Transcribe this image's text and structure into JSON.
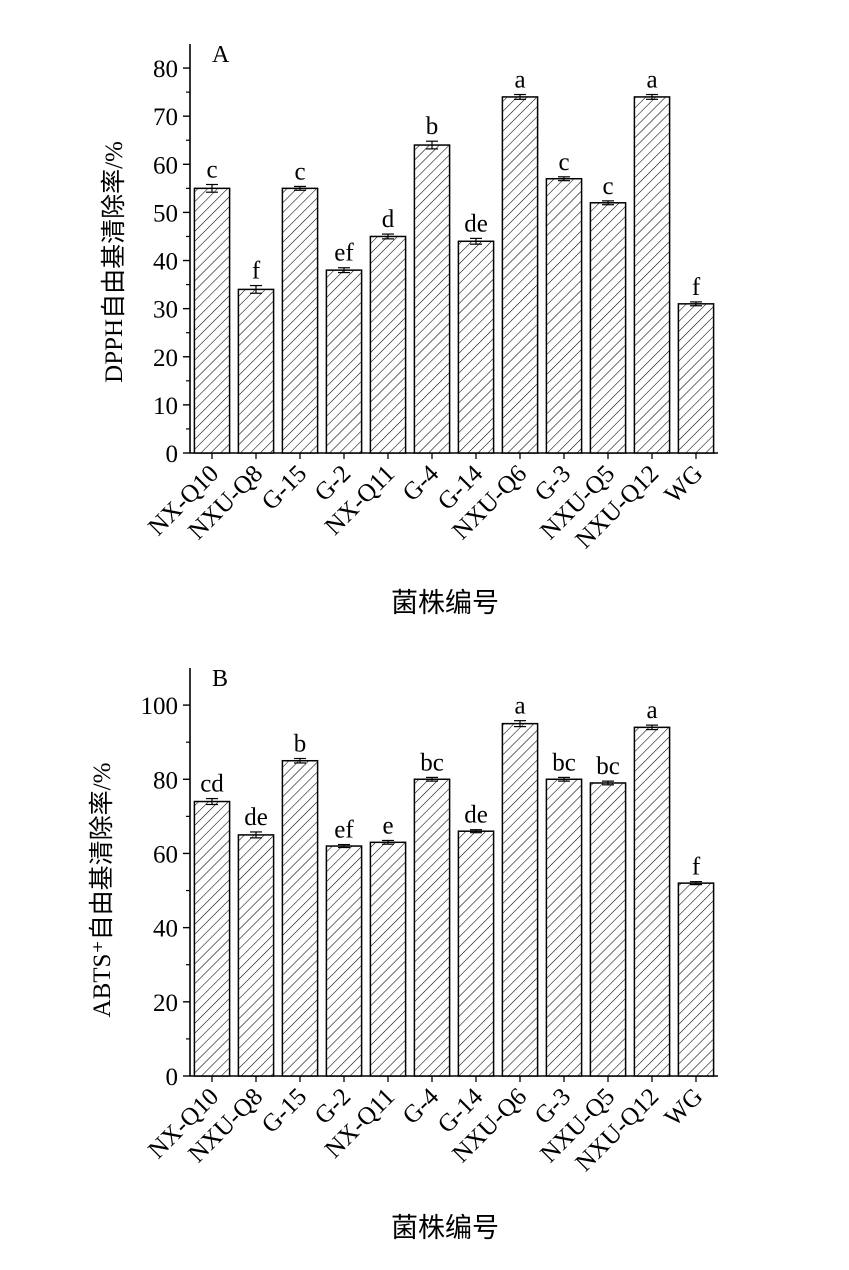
{
  "chart_data": [
    {
      "type": "bar",
      "panel_label": "A",
      "ylabel": "DPPH自由基清除率/%",
      "xlabel": "菌株编号",
      "categories": [
        "NX-Q10",
        "NXU-Q8",
        "G-15",
        "G-2",
        "NX-Q11",
        "G-4",
        "G-14",
        "NXU-Q6",
        "G-3",
        "NXU-Q5",
        "NXU-Q12",
        "WG"
      ],
      "values": [
        55,
        34,
        55,
        38,
        45,
        64,
        44,
        74,
        57,
        52,
        74,
        31
      ],
      "errors": [
        0.8,
        0.8,
        0.4,
        0.5,
        0.5,
        0.8,
        0.6,
        0.5,
        0.4,
        0.4,
        0.5,
        0.4
      ],
      "labels": [
        "c",
        "f",
        "c",
        "ef",
        "d",
        "b",
        "de",
        "a",
        "c",
        "c",
        "a",
        "f"
      ],
      "ylim": [
        0,
        85
      ],
      "yticks": [
        0,
        10,
        20,
        30,
        40,
        50,
        60,
        70,
        80
      ],
      "hatch": "diagonal",
      "bar_color": "#ffffff",
      "line_color": "#000000"
    },
    {
      "type": "bar",
      "panel_label": "B",
      "ylabel": "ABTS⁺自由基清除率/%",
      "xlabel": "菌株编号",
      "categories": [
        "NX-Q10",
        "NXU-Q8",
        "G-15",
        "G-2",
        "NX-Q11",
        "G-4",
        "G-14",
        "NXU-Q6",
        "G-3",
        "NXU-Q5",
        "NXU-Q12",
        "WG"
      ],
      "values": [
        74,
        65,
        85,
        62,
        63,
        80,
        66,
        95,
        80,
        79,
        94,
        52
      ],
      "errors": [
        0.8,
        0.8,
        0.6,
        0.4,
        0.5,
        0.5,
        0.4,
        0.8,
        0.5,
        0.5,
        0.6,
        0.4
      ],
      "labels": [
        "cd",
        "de",
        "b",
        "ef",
        "e",
        "bc",
        "de",
        "a",
        "bc",
        "bc",
        "a",
        "f"
      ],
      "ylim": [
        0,
        110
      ],
      "yticks": [
        0,
        20,
        40,
        60,
        80,
        100
      ],
      "hatch": "diagonal",
      "bar_color": "#ffffff",
      "line_color": "#000000"
    }
  ]
}
